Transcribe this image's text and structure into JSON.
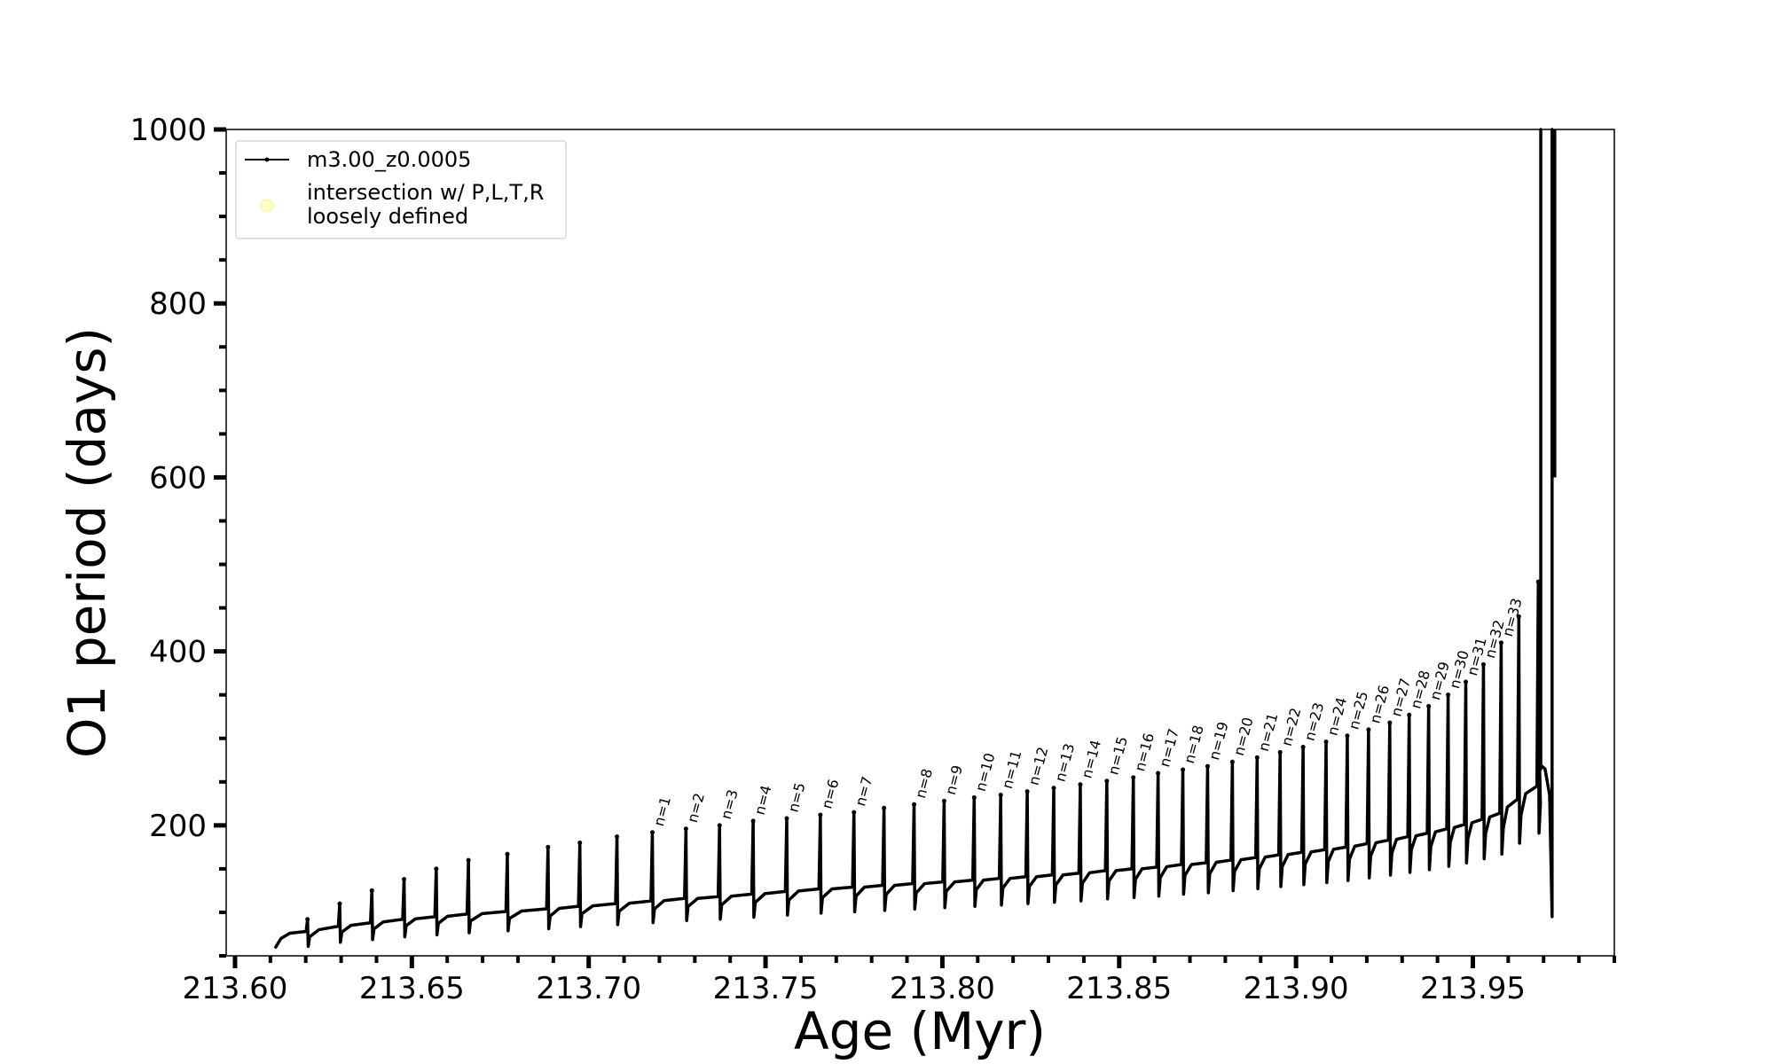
{
  "chart_data": {
    "type": "line",
    "title": "",
    "xlabel": "Age (Myr)",
    "ylabel": "O1 period (days)",
    "xlim": [
      213.5975,
      213.99
    ],
    "ylim": [
      50,
      1000
    ],
    "x_ticks": [
      213.6,
      213.65,
      213.7,
      213.75,
      213.8,
      213.85,
      213.9,
      213.95
    ],
    "x_tick_labels": [
      "213.60",
      "213.65",
      "213.70",
      "213.75",
      "213.80",
      "213.85",
      "213.90",
      "213.95"
    ],
    "y_ticks": [
      200,
      400,
      600,
      800,
      1000
    ],
    "y_tick_labels": [
      "200",
      "400",
      "600",
      "800",
      "1000"
    ],
    "grid": false,
    "legend_position": "top-left",
    "legend": [
      {
        "label": "m3.00_z0.0005",
        "marker": "line-dot",
        "color": "#000000"
      },
      {
        "label_lines": [
          "intersection w/ P,L,T,R",
          "loosely defined"
        ],
        "marker": "circle",
        "color": "#ffffc0"
      }
    ],
    "series": [
      {
        "name": "m3.00_z0.0005",
        "color": "#000000",
        "x_start": 213.6115,
        "x_end": 213.9725,
        "pulses": [
          {
            "x": 213.6205,
            "peak": 92,
            "base": 78
          },
          {
            "x": 213.6296,
            "peak": 110,
            "base": 84
          },
          {
            "x": 213.6387,
            "peak": 125,
            "base": 88
          },
          {
            "x": 213.6478,
            "peak": 138,
            "base": 92
          },
          {
            "x": 213.6569,
            "peak": 150,
            "base": 95
          },
          {
            "x": 213.666,
            "peak": 160,
            "base": 98
          },
          {
            "x": 213.677,
            "peak": 167,
            "base": 101
          },
          {
            "x": 213.6885,
            "peak": 175,
            "base": 104
          },
          {
            "x": 213.6975,
            "peak": 180,
            "base": 107
          },
          {
            "x": 213.708,
            "peak": 187,
            "base": 110
          },
          {
            "x": 213.718,
            "peak": 192,
            "base": 113,
            "label": "n=1"
          },
          {
            "x": 213.7275,
            "peak": 196,
            "base": 116,
            "label": "n=2"
          },
          {
            "x": 213.737,
            "peak": 200,
            "base": 118,
            "label": "n=3"
          },
          {
            "x": 213.7465,
            "peak": 205,
            "base": 121,
            "label": "n=4"
          },
          {
            "x": 213.756,
            "peak": 208,
            "base": 124,
            "label": "n=5"
          },
          {
            "x": 213.7655,
            "peak": 212,
            "base": 127,
            "label": "n=6"
          },
          {
            "x": 213.775,
            "peak": 215,
            "base": 129,
            "label": "n=7"
          },
          {
            "x": 213.7835,
            "peak": 220,
            "base": 131
          },
          {
            "x": 213.792,
            "peak": 224,
            "base": 133,
            "label": "n=8"
          },
          {
            "x": 213.8005,
            "peak": 228,
            "base": 135,
            "label": "n=9"
          },
          {
            "x": 213.809,
            "peak": 232,
            "base": 137,
            "label": "n=10"
          },
          {
            "x": 213.8165,
            "peak": 235,
            "base": 139,
            "label": "n=11"
          },
          {
            "x": 213.824,
            "peak": 239,
            "base": 141,
            "label": "n=12"
          },
          {
            "x": 213.8315,
            "peak": 243,
            "base": 143,
            "label": "n=13"
          },
          {
            "x": 213.839,
            "peak": 247,
            "base": 145,
            "label": "n=14"
          },
          {
            "x": 213.8465,
            "peak": 251,
            "base": 148,
            "label": "n=15"
          },
          {
            "x": 213.854,
            "peak": 255,
            "base": 150,
            "label": "n=16"
          },
          {
            "x": 213.861,
            "peak": 260,
            "base": 152,
            "label": "n=17"
          },
          {
            "x": 213.868,
            "peak": 264,
            "base": 155,
            "label": "n=18"
          },
          {
            "x": 213.875,
            "peak": 268,
            "base": 157,
            "label": "n=19"
          },
          {
            "x": 213.882,
            "peak": 273,
            "base": 160,
            "label": "n=20"
          },
          {
            "x": 213.889,
            "peak": 278,
            "base": 163,
            "label": "n=21"
          },
          {
            "x": 213.8955,
            "peak": 284,
            "base": 166,
            "label": "n=22"
          },
          {
            "x": 213.902,
            "peak": 290,
            "base": 169,
            "label": "n=23"
          },
          {
            "x": 213.9085,
            "peak": 296,
            "base": 172,
            "label": "n=24"
          },
          {
            "x": 213.9145,
            "peak": 303,
            "base": 175,
            "label": "n=25"
          },
          {
            "x": 213.9205,
            "peak": 310,
            "base": 179,
            "label": "n=26"
          },
          {
            "x": 213.9265,
            "peak": 318,
            "base": 183,
            "label": "n=27"
          },
          {
            "x": 213.932,
            "peak": 327,
            "base": 187,
            "label": "n=28"
          },
          {
            "x": 213.9375,
            "peak": 337,
            "base": 191,
            "label": "n=29"
          },
          {
            "x": 213.943,
            "peak": 350,
            "base": 196,
            "label": "n=30"
          },
          {
            "x": 213.948,
            "peak": 365,
            "base": 201,
            "label": "n=31"
          },
          {
            "x": 213.953,
            "peak": 385,
            "base": 207,
            "label": "n=32"
          },
          {
            "x": 213.958,
            "peak": 410,
            "base": 214,
            "label": "n=33"
          },
          {
            "x": 213.963,
            "peak": 440,
            "base": 230
          },
          {
            "x": 213.9685,
            "peak": 480,
            "base": 245
          }
        ],
        "spikes": [
          {
            "x": 213.9692,
            "from": 265,
            "to": 1000
          },
          {
            "x": 213.9724,
            "from": 95,
            "to": 1000
          }
        ]
      }
    ]
  }
}
